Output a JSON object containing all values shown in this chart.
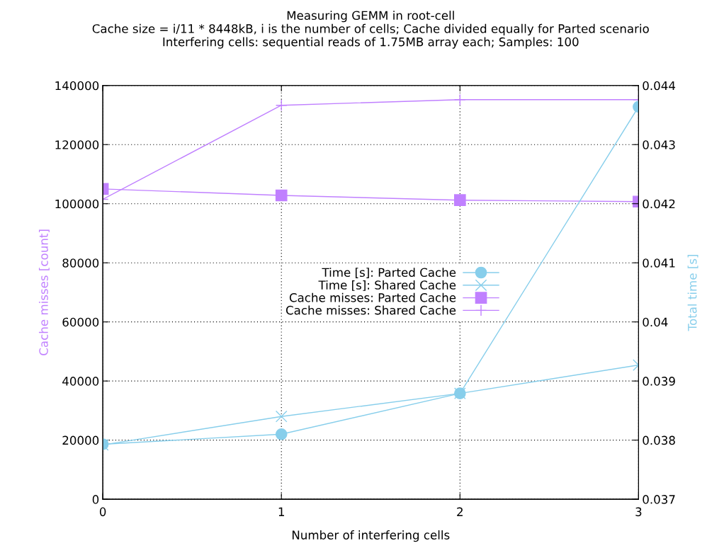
{
  "chart_data": {
    "type": "line",
    "title": "Measuring GEMM in root-cell\nCache size = i/11 * 8448kB, i is the number of cells; Cache divided equally for Parted scenario\nInterfering cells: sequential reads of 1.75MB array each; Samples: 100",
    "xlabel": "Number of interfering cells",
    "ylabel": "Cache misses [count]",
    "y2label": "Total time [s]",
    "x": [
      0,
      1,
      2,
      3
    ],
    "xlim": [
      0,
      3
    ],
    "xticks": [
      0,
      1,
      2,
      3
    ],
    "ylim": [
      0,
      140000
    ],
    "yticks": [
      0,
      20000,
      40000,
      60000,
      80000,
      100000,
      120000,
      140000
    ],
    "y2lim": [
      0.037,
      0.044
    ],
    "y2ticks": [
      0.037,
      0.038,
      0.039,
      0.04,
      0.041,
      0.042,
      0.043,
      0.044
    ],
    "grid": true,
    "legend": "center",
    "series": [
      {
        "name": "Time [s]: Parted Cache",
        "color": "#87ceeb",
        "axis": "y2",
        "marker": "circle",
        "values": [
          0.03793,
          0.0381,
          0.03879,
          0.04364
        ]
      },
      {
        "name": "Time [s]: Shared Cache",
        "color": "#87ceeb",
        "axis": "y2",
        "marker": "cross",
        "values": [
          0.03792,
          0.0384,
          0.03879,
          0.03927
        ]
      },
      {
        "name": "Cache misses: Parted Cache",
        "color": "#c080ff",
        "axis": "y",
        "marker": "square",
        "values": [
          105000,
          102800,
          101200,
          100700
        ]
      },
      {
        "name": "Cache misses: Shared Cache",
        "color": "#c080ff",
        "axis": "y",
        "marker": "plus",
        "values": [
          101500,
          133300,
          135200,
          135200
        ]
      }
    ]
  }
}
